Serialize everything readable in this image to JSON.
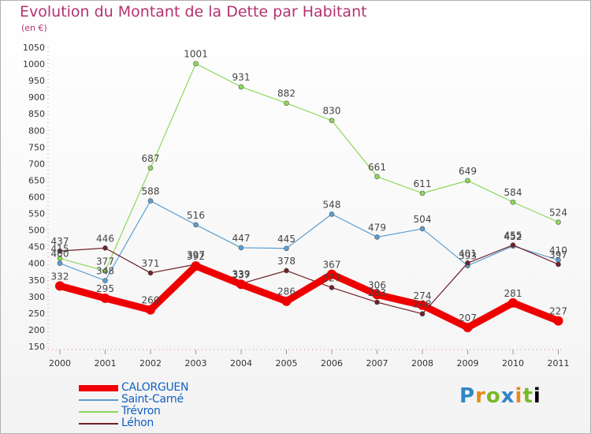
{
  "title": "Evolution du Montant de la Dette par Habitant",
  "subtitle": "(en €)",
  "logo": [
    "P",
    "r",
    "o",
    "x",
    "i",
    "t",
    "i"
  ],
  "chart_data": {
    "type": "line",
    "categories": [
      "2000",
      "2001",
      "2002",
      "2003",
      "2004",
      "2005",
      "2006",
      "2007",
      "2008",
      "2009",
      "2010",
      "2011"
    ],
    "ylim": [
      150,
      1050
    ],
    "yticks": [
      150,
      200,
      250,
      300,
      350,
      400,
      450,
      500,
      550,
      600,
      650,
      700,
      750,
      800,
      850,
      900,
      950,
      1000,
      1050
    ],
    "grid": false,
    "legend": "bottom-left",
    "series": [
      {
        "name": "CALORGUEN",
        "color": "#ee0000",
        "values": [
          332,
          295,
          260,
          392,
          337,
          286,
          367,
          306,
          274,
          207,
          281,
          227
        ]
      },
      {
        "name": "Saint-Carné",
        "color": "#5a9ed2",
        "values": [
          400,
          348,
          588,
          516,
          447,
          445,
          548,
          479,
          504,
          393,
          452,
          410
        ]
      },
      {
        "name": "Trévron",
        "color": "#8ed85a",
        "values": [
          415,
          377,
          687,
          1001,
          931,
          882,
          830,
          661,
          611,
          649,
          584,
          524
        ]
      },
      {
        "name": "Léhon",
        "color": "#702028",
        "values": [
          437,
          446,
          371,
          397,
          339,
          378,
          327,
          283,
          248,
          401,
          455,
          397
        ]
      }
    ]
  }
}
